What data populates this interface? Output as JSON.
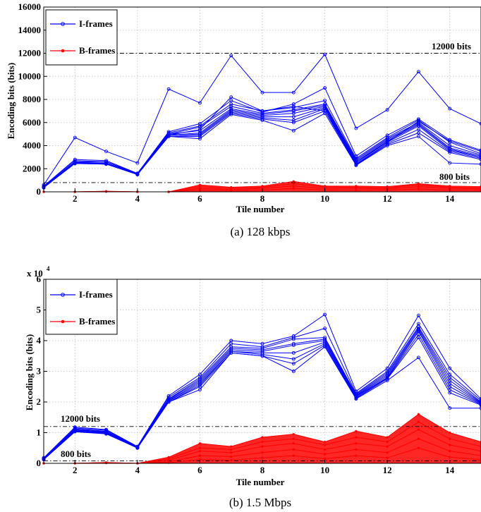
{
  "chart_data": [
    {
      "type": "line",
      "caption": "(a)  128 kbps",
      "xlabel": "Tile number",
      "ylabel": "Encoding bits (bits)",
      "xlim": [
        1,
        15
      ],
      "ylim": [
        0,
        16000
      ],
      "xticks": [
        2,
        4,
        6,
        8,
        10,
        12,
        14
      ],
      "yticks": [
        0,
        2000,
        4000,
        6000,
        8000,
        10000,
        12000,
        14000,
        16000
      ],
      "yticklabels": [
        "0",
        "2000",
        "4000",
        "6000",
        "8000",
        "10000",
        "12000",
        "14000",
        "16000"
      ],
      "grid": true,
      "legend": {
        "placement": "top-left",
        "entries": [
          "I-frames",
          "B-frames"
        ]
      },
      "reference_lines": [
        {
          "y": 12000,
          "label": "12000 bits"
        },
        {
          "y": 800,
          "label": "800 bits"
        }
      ],
      "x": [
        1,
        2,
        3,
        4,
        5,
        6,
        7,
        8,
        9,
        10,
        11,
        12,
        13,
        14,
        15
      ],
      "colors": {
        "I-frames": "#0000ff",
        "B-frames": "#ff0000"
      },
      "i_frames_series": [
        [
          600,
          4700,
          3500,
          2500,
          8900,
          7700,
          11800,
          8600,
          8600,
          11900,
          5500,
          7100,
          10400,
          7200,
          5900
        ],
        [
          500,
          2800,
          2700,
          1600,
          5200,
          5900,
          7900,
          6900,
          7600,
          9000,
          3100,
          4900,
          6300,
          4500,
          3600
        ],
        [
          450,
          2700,
          2600,
          1600,
          5100,
          5700,
          7600,
          7000,
          7300,
          7900,
          2900,
          4700,
          6200,
          4300,
          3300
        ],
        [
          400,
          2600,
          2600,
          1550,
          5000,
          5600,
          7400,
          6800,
          7100,
          7600,
          2800,
          4600,
          6000,
          4000,
          3200
        ],
        [
          420,
          2550,
          2500,
          1550,
          5000,
          5300,
          7200,
          6700,
          7000,
          7500,
          2700,
          4500,
          5900,
          3800,
          3100
        ],
        [
          400,
          2500,
          2500,
          1500,
          4900,
          5100,
          7100,
          6600,
          6800,
          7400,
          2600,
          4400,
          5800,
          3700,
          3000
        ],
        [
          380,
          2500,
          2450,
          1500,
          4900,
          5000,
          7000,
          6500,
          6500,
          7300,
          2500,
          4300,
          5700,
          3600,
          3000
        ],
        [
          400,
          2500,
          2400,
          1500,
          4800,
          4900,
          6900,
          6400,
          6200,
          7200,
          2400,
          4200,
          5400,
          3500,
          2900
        ],
        [
          380,
          2450,
          2400,
          1500,
          4800,
          4800,
          6800,
          6300,
          6000,
          7000,
          2350,
          4100,
          5100,
          3400,
          2800
        ],
        [
          380,
          2450,
          2400,
          1500,
          4800,
          4600,
          6700,
          6200,
          5300,
          6800,
          2300,
          4000,
          4800,
          2500,
          2400
        ],
        [
          350,
          2500,
          2450,
          1500,
          4900,
          5400,
          8200,
          7000,
          7400,
          7000,
          2600,
          4300,
          6100,
          4400,
          3500
        ]
      ],
      "b_frames_series": [
        [
          0,
          0,
          50,
          0,
          0,
          600,
          400,
          500,
          900,
          500,
          500,
          450,
          700,
          500,
          450
        ],
        [
          0,
          0,
          40,
          0,
          0,
          450,
          300,
          400,
          700,
          420,
          400,
          350,
          600,
          400,
          350
        ],
        [
          0,
          0,
          30,
          0,
          0,
          300,
          200,
          300,
          500,
          300,
          300,
          250,
          450,
          300,
          250
        ],
        [
          0,
          0,
          20,
          0,
          0,
          150,
          100,
          150,
          300,
          150,
          150,
          150,
          250,
          150,
          150
        ]
      ]
    },
    {
      "type": "line",
      "caption": "(b)  1.5 Mbps",
      "xlabel": "Tile number",
      "ylabel": "Encoding bits (bits)",
      "y_scale_label": "x 10",
      "y_scale_exponent": "4",
      "xlim": [
        1,
        15
      ],
      "ylim": [
        0,
        60000
      ],
      "xticks": [
        2,
        4,
        6,
        8,
        10,
        12,
        14
      ],
      "yticks": [
        0,
        10000,
        20000,
        30000,
        40000,
        50000,
        60000
      ],
      "yticklabels": [
        "0",
        "1",
        "2",
        "3",
        "4",
        "5",
        "6"
      ],
      "grid": true,
      "legend": {
        "placement": "top-left",
        "entries": [
          "I-frames",
          "B-frames"
        ]
      },
      "reference_lines": [
        {
          "y": 12000,
          "label": "12000 bits"
        },
        {
          "y": 800,
          "label": "800 bits"
        }
      ],
      "x": [
        1,
        2,
        3,
        4,
        5,
        6,
        7,
        8,
        9,
        10,
        11,
        12,
        13,
        14,
        15
      ],
      "colors": {
        "I-frames": "#0000ff",
        "B-frames": "#ff0000"
      },
      "i_frames_series": [
        [
          1800,
          11800,
          11000,
          5500,
          22000,
          29000,
          40000,
          39000,
          41500,
          48500,
          23500,
          31000,
          48200,
          31000,
          21000
        ],
        [
          1600,
          11500,
          10800,
          5400,
          21500,
          28000,
          39000,
          38000,
          41000,
          44000,
          22800,
          30000,
          45500,
          29000,
          20500
        ],
        [
          1500,
          11200,
          10500,
          5300,
          21000,
          27500,
          38000,
          37500,
          40500,
          41000,
          22500,
          29500,
          44500,
          28000,
          20000
        ],
        [
          1500,
          11000,
          10300,
          5200,
          20800,
          27000,
          37500,
          37000,
          39000,
          40500,
          22200,
          29000,
          44000,
          27000,
          19800
        ],
        [
          1400,
          10800,
          10200,
          5200,
          20500,
          26500,
          37000,
          36500,
          38500,
          40000,
          22000,
          28500,
          43500,
          26000,
          19600
        ],
        [
          1400,
          10600,
          10000,
          5100,
          20300,
          26000,
          36500,
          36000,
          36000,
          39500,
          21800,
          28000,
          43000,
          25000,
          19400
        ],
        [
          1300,
          10500,
          9800,
          5100,
          20000,
          25500,
          36500,
          35500,
          34000,
          39000,
          21500,
          27800,
          42000,
          24000,
          19200
        ],
        [
          1300,
          10400,
          9700,
          5000,
          20000,
          25000,
          36000,
          35000,
          32500,
          38500,
          21200,
          27500,
          41000,
          23000,
          19000
        ],
        [
          1200,
          10300,
          9600,
          5000,
          20000,
          24000,
          36000,
          35000,
          30000,
          38000,
          21000,
          27000,
          34500,
          18000,
          18000
        ]
      ],
      "b_frames_series": [
        [
          0,
          0,
          300,
          0,
          2000,
          6500,
          5500,
          8500,
          9500,
          7000,
          10500,
          8500,
          16000,
          10000,
          7000
        ],
        [
          0,
          0,
          250,
          0,
          1500,
          5000,
          4500,
          7000,
          8000,
          6000,
          8500,
          7000,
          13500,
          8000,
          5500
        ],
        [
          0,
          0,
          200,
          0,
          1000,
          4000,
          3500,
          5500,
          6500,
          4500,
          6500,
          5500,
          11000,
          6000,
          4000
        ],
        [
          0,
          0,
          150,
          0,
          500,
          2500,
          2200,
          3500,
          4500,
          3000,
          4500,
          3500,
          8000,
          4000,
          2500
        ],
        [
          0,
          0,
          100,
          0,
          200,
          1200,
          1000,
          1800,
          2500,
          1500,
          2500,
          1800,
          5000,
          2000,
          1200
        ]
      ]
    }
  ]
}
